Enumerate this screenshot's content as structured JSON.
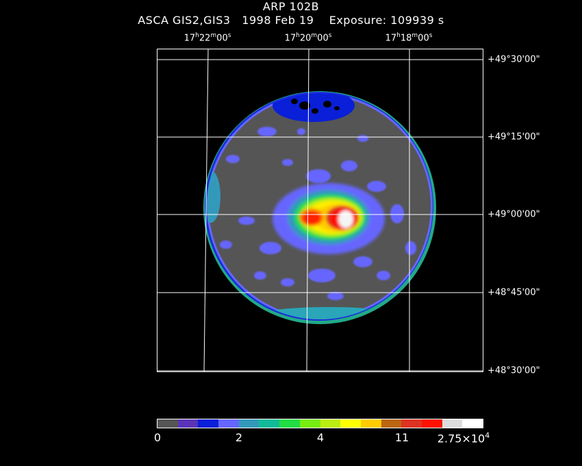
{
  "header": {
    "object": "ARP 102B",
    "instrument": "ASCA GIS2,GIS3",
    "date": "1998 Feb 19",
    "exposure": "Exposure: 109939 s"
  },
  "ra_axis": [
    {
      "h": "17",
      "m": "22",
      "s": "00"
    },
    {
      "h": "17",
      "m": "20",
      "s": "00"
    },
    {
      "h": "17",
      "m": "18",
      "s": "00"
    }
  ],
  "dec_axis": [
    "+49°30'00\"",
    "+49°15'00\"",
    "+49°00'00\"",
    "+48°45'00\"",
    "+48°30'00\""
  ],
  "colors": {
    "background": "#000000",
    "grid": "#ffffff",
    "field": "#555555",
    "rim_blue": "#1a2ed8",
    "teal": "#2aa6b8",
    "mid_blue": "#6666ff",
    "green": "#22dd44",
    "yellow": "#ffee00",
    "orange": "#ff8800",
    "red": "#ff2200",
    "white": "#f4f4f4"
  },
  "colorbar": {
    "swatches": [
      "#555555",
      "#5a34b8",
      "#0a1fd8",
      "#6666ff",
      "#3399bb",
      "#11bb99",
      "#22dd44",
      "#77ee11",
      "#bbee11",
      "#ffff00",
      "#ffcc00",
      "#bb6611",
      "#dd3322",
      "#ff1100",
      "#dddddd",
      "#ffffff"
    ],
    "tick_labels": [
      "0",
      "2",
      "4",
      "11"
    ],
    "max_label_mantissa": "2.75×10",
    "max_label_exponent": "4"
  }
}
